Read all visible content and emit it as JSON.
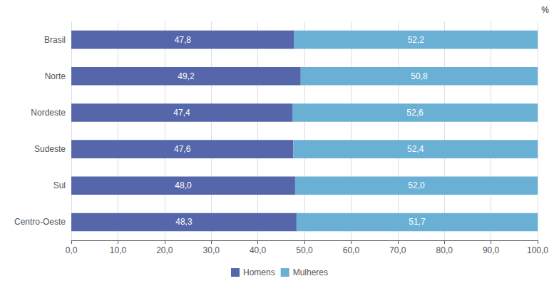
{
  "chart_data": {
    "type": "bar",
    "orientation": "horizontal",
    "stacked": true,
    "categories": [
      "Brasil",
      "Norte",
      "Nordeste",
      "Sudeste",
      "Sul",
      "Centro-Oeste"
    ],
    "series": [
      {
        "name": "Homens",
        "color": "#5566aa",
        "values": [
          47.8,
          49.2,
          47.4,
          47.6,
          48.0,
          48.3
        ],
        "value_labels": [
          "47,8",
          "49,2",
          "47,4",
          "47,6",
          "48,0",
          "48,3"
        ]
      },
      {
        "name": "Mulheres",
        "color": "#6ab0d4",
        "values": [
          52.2,
          50.8,
          52.6,
          52.4,
          52.0,
          51.7
        ],
        "value_labels": [
          "52,2",
          "50,8",
          "52,6",
          "52,4",
          "52,0",
          "51,7"
        ]
      }
    ],
    "xlim": [
      0,
      100
    ],
    "xticks": [
      {
        "value": 0,
        "label": "0,0"
      },
      {
        "value": 10,
        "label": "10,0"
      },
      {
        "value": 20,
        "label": "20,0"
      },
      {
        "value": 30,
        "label": "30,0"
      },
      {
        "value": 40,
        "label": "40,0"
      },
      {
        "value": 50,
        "label": "50,0"
      },
      {
        "value": 60,
        "label": "60,0"
      },
      {
        "value": 70,
        "label": "70,0"
      },
      {
        "value": 80,
        "label": "80,0"
      },
      {
        "value": 90,
        "label": "90,0"
      },
      {
        "value": 100,
        "label": "100,0"
      }
    ],
    "grid": true,
    "legend": "bottom",
    "data_labels": true,
    "annotations": [
      "%"
    ]
  }
}
